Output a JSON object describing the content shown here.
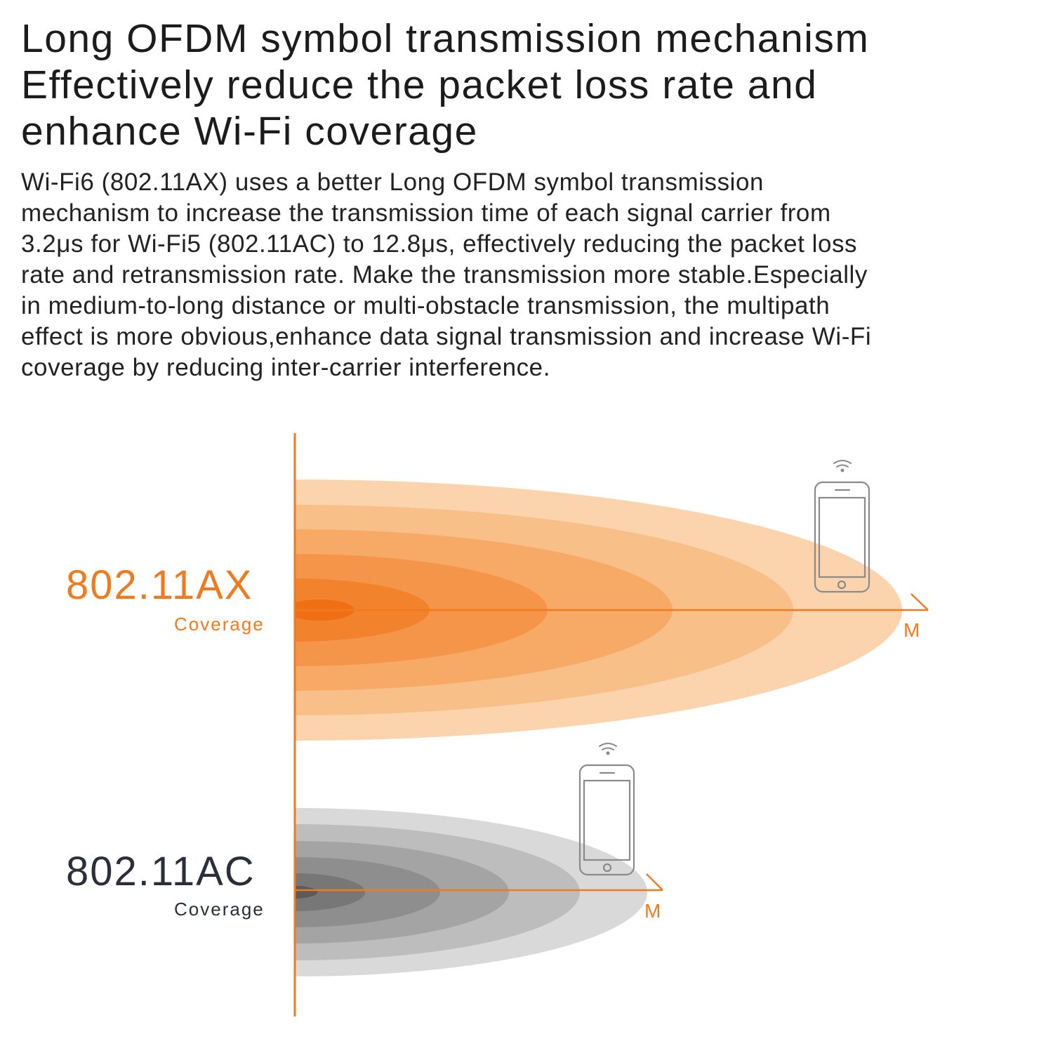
{
  "headline": {
    "lines": [
      "Long OFDM symbol transmission mechanism",
      "Effectively reduce the packet loss rate and",
      "enhance Wi-Fi coverage"
    ]
  },
  "body": {
    "lines": [
      "Wi-Fi6 (802.11AX) uses a better Long OFDM symbol transmission",
      "mechanism to increase the transmission time of each signal carrier from",
      "3.2μs for Wi-Fi5 (802.11AC) to 12.8μs, effectively reducing the packet loss",
      "rate and retransmission rate. Make the transmission more stable.Especially",
      "in medium-to-long distance or multi-obstacle transmission, the multipath",
      "effect is more obvious,enhance data signal transmission and increase Wi-Fi",
      "coverage by reducing inter-carrier interference."
    ]
  },
  "diagram": {
    "ax": {
      "label": "802.11AX",
      "sublabel": "Coverage",
      "unit": "M"
    },
    "ac": {
      "label": "802.11AC",
      "sublabel": "Coverage",
      "unit": "M"
    },
    "colors": {
      "accent": "#f07a1e",
      "ax_rings": [
        "#fbd3ad",
        "#f9bf88",
        "#f7aa66",
        "#f59549",
        "#f3822d",
        "#f06e14"
      ],
      "ac_rings": [
        "#d9d9d9",
        "#bdbdbd",
        "#a4a4a4",
        "#8e8e8e",
        "#777777",
        "#5b5b5b"
      ],
      "phone_outline": "#8a8a8a",
      "label_dark": "#2a2f3a"
    },
    "icons": [
      "phone-icon",
      "wifi-signal-icon"
    ]
  }
}
